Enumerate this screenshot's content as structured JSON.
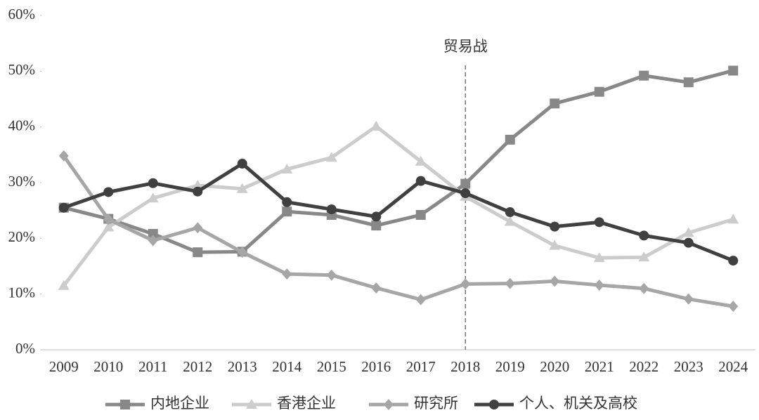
{
  "chart_data": {
    "type": "line",
    "categories": [
      "2009",
      "2010",
      "2011",
      "2012",
      "2013",
      "2014",
      "2015",
      "2016",
      "2017",
      "2018",
      "2019",
      "2020",
      "2021",
      "2022",
      "2023",
      "2024"
    ],
    "ylim": [
      0,
      60
    ],
    "yticks": [
      {
        "value": 0,
        "label": "0%"
      },
      {
        "value": 10,
        "label": "10%"
      },
      {
        "value": 20,
        "label": "20%"
      },
      {
        "value": 30,
        "label": "30%"
      },
      {
        "value": 40,
        "label": "40%"
      },
      {
        "value": 50,
        "label": "50%"
      },
      {
        "value": 60,
        "label": "60%"
      }
    ],
    "grid": false,
    "legend": "bottom",
    "annotations": [
      {
        "text": "贸易战",
        "x": "2018"
      }
    ],
    "series": [
      {
        "name": "内地企业",
        "color": "#888888",
        "marker": "square",
        "values": [
          25.5,
          23.5,
          20.8,
          17.5,
          17.6,
          24.8,
          24.2,
          22.3,
          24.2,
          29.8,
          37.7,
          44.2,
          46.3,
          49.2,
          48.0,
          50.1
        ]
      },
      {
        "name": "香港企业",
        "color": "#cccccc",
        "marker": "triangle",
        "values": [
          11.5,
          22.0,
          27.2,
          29.5,
          28.9,
          32.4,
          34.5,
          40.1,
          33.8,
          27.5,
          23.0,
          18.7,
          16.5,
          16.6,
          21.0,
          23.4
        ]
      },
      {
        "name": "研究所",
        "color": "#a6a6a6",
        "marker": "diamond",
        "values": [
          34.8,
          23.4,
          19.6,
          21.9,
          17.5,
          13.6,
          13.4,
          11.1,
          9.0,
          11.8,
          11.9,
          12.3,
          11.6,
          11.0,
          9.1,
          7.8
        ]
      },
      {
        "name": "个人、机关及高校",
        "color": "#404040",
        "marker": "circle",
        "values": [
          25.5,
          28.3,
          29.9,
          28.4,
          33.4,
          26.5,
          25.2,
          23.9,
          30.3,
          28.1,
          24.7,
          22.1,
          22.9,
          20.5,
          19.2,
          16.0
        ]
      }
    ]
  }
}
